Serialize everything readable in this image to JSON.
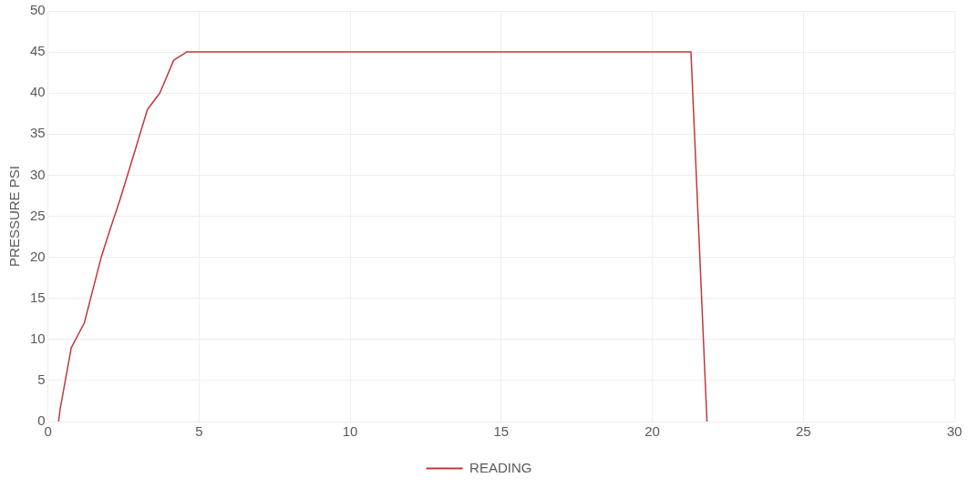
{
  "chart_data": {
    "type": "line",
    "ylabel": "PRESSURE PSI",
    "series": [
      {
        "name": "READING",
        "color": "#c0393b",
        "x": [
          0.35,
          0.4,
          0.77,
          1.2,
          1.41,
          1.76,
          2.02,
          2.38,
          2.88,
          3.29,
          3.7,
          4.16,
          4.59,
          21.28,
          21.81
        ],
        "values": [
          0,
          1.5,
          9,
          12,
          15,
          20,
          23,
          27,
          33,
          38,
          40,
          44,
          45,
          45,
          0
        ]
      }
    ],
    "xlim": [
      0,
      30
    ],
    "xticks": [
      0,
      5,
      10,
      15,
      20,
      25,
      30
    ],
    "ylim": [
      0,
      50
    ],
    "yticks": [
      0,
      5,
      10,
      15,
      20,
      25,
      30,
      35,
      40,
      45,
      50
    ],
    "grid": true,
    "legend": "bottom",
    "marker": "none",
    "line_style": "solid"
  }
}
